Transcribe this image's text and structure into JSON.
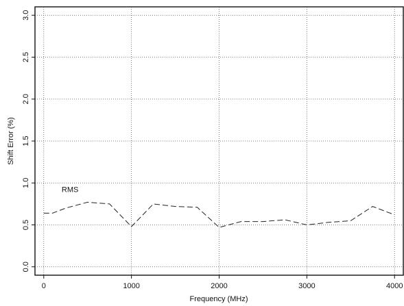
{
  "chart_data": {
    "type": "line",
    "title": "",
    "xlabel": "Frequency (MHz)",
    "ylabel": "Shift Error (%)",
    "xlim": [
      -100,
      4100
    ],
    "ylim": [
      -0.1,
      3.1
    ],
    "xticks": [
      0,
      1000,
      2000,
      3000,
      4000
    ],
    "xtick_labels": [
      "0",
      "1000",
      "2000",
      "3000",
      "4000"
    ],
    "yticks": [
      0.0,
      0.5,
      1.0,
      1.5,
      2.0,
      2.5,
      3.0
    ],
    "ytick_labels": [
      "0.0",
      "0.5",
      "1.0",
      "1.5",
      "2.0",
      "2.5",
      "3.0"
    ],
    "grid": true,
    "series": [
      {
        "name": "RMS",
        "line_style": "dashed",
        "x": [
          0,
          100,
          250,
          500,
          750,
          1000,
          1250,
          1500,
          1750,
          2000,
          2250,
          2500,
          2750,
          3000,
          3250,
          3500,
          3750,
          4000
        ],
        "y": [
          0.64,
          0.64,
          0.7,
          0.77,
          0.75,
          0.48,
          0.75,
          0.72,
          0.71,
          0.47,
          0.54,
          0.54,
          0.56,
          0.5,
          0.53,
          0.55,
          0.72,
          0.62
        ]
      }
    ],
    "annotations": [
      {
        "text": "RMS",
        "x": 300,
        "y": 0.89
      }
    ]
  }
}
